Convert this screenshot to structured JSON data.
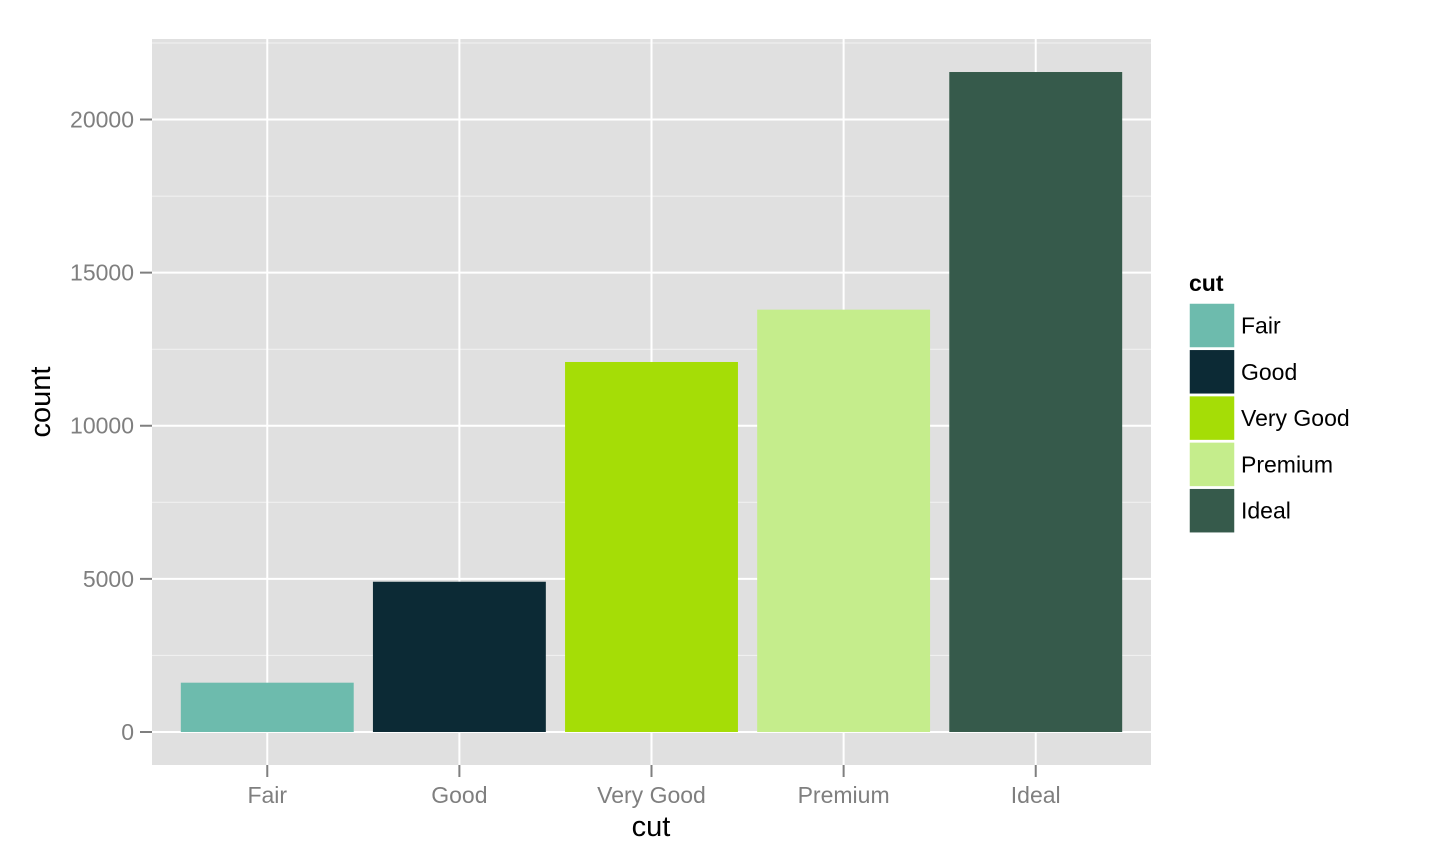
{
  "chart_data": {
    "type": "bar",
    "categories": [
      "Fair",
      "Good",
      "Very Good",
      "Premium",
      "Ideal"
    ],
    "values": [
      1610,
      4906,
      12082,
      13791,
      21551
    ],
    "colors": [
      "#6dbbad",
      "#0c2a35",
      "#a5dd06",
      "#c5ed8c",
      "#365a4b"
    ],
    "xlabel": "cut",
    "ylabel": "count",
    "ylim": [
      -1078,
      22629
    ],
    "yticks": [
      0,
      5000,
      10000,
      15000,
      20000
    ],
    "ytick_labels": [
      "0",
      "5000",
      "10000",
      "15000",
      "20000"
    ],
    "grid": true,
    "panel_background": "#e0e0e0",
    "legend": {
      "title": "cut",
      "placement": "right",
      "entries": [
        "Fair",
        "Good",
        "Very Good",
        "Premium",
        "Ideal"
      ]
    }
  }
}
